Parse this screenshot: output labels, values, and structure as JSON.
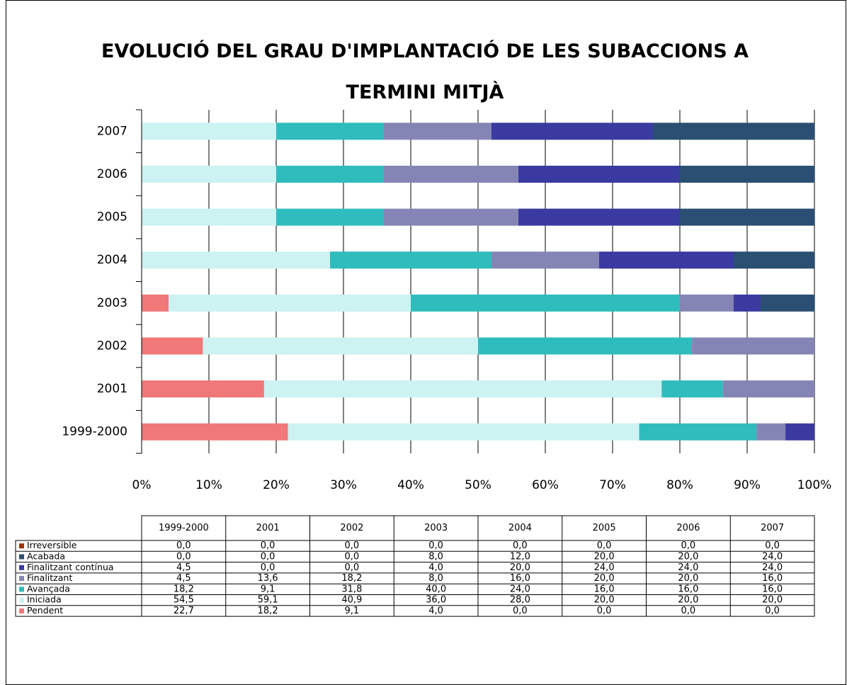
{
  "chart_data": {
    "type": "percent_stacked_barh",
    "title": "EVOLUCIÓ DEL GRAU D'IMPLANTACIÓ DE LES SUBACCIONS A TERMINI MITJÀ",
    "categories": [
      "1999-2000",
      "2001",
      "2002",
      "2003",
      "2004",
      "2005",
      "2006",
      "2007"
    ],
    "series": [
      {
        "name": "Pendent",
        "color": "#f07878",
        "values": [
          22.7,
          18.2,
          9.1,
          4.0,
          0.0,
          0.0,
          0.0,
          0.0
        ],
        "value_labels": [
          "22,7",
          "18,2",
          "9,1",
          "4,0",
          "0,0",
          "0,0",
          "0,0",
          "0,0"
        ]
      },
      {
        "name": "Iniciada",
        "color": "#ccf2f2",
        "values": [
          54.5,
          59.1,
          40.9,
          36.0,
          28.0,
          20.0,
          20.0,
          20.0
        ],
        "value_labels": [
          "54,5",
          "59,1",
          "40,9",
          "36,0",
          "28,0",
          "20,0",
          "20,0",
          "20,0"
        ]
      },
      {
        "name": "Avançada",
        "color": "#2fbcbc",
        "values": [
          18.2,
          9.1,
          31.8,
          40.0,
          24.0,
          16.0,
          16.0,
          16.0
        ],
        "value_labels": [
          "18,2",
          "9,1",
          "31,8",
          "40,0",
          "24,0",
          "16,0",
          "16,0",
          "16,0"
        ]
      },
      {
        "name": "Finalitzant",
        "color": "#8585b5",
        "values": [
          4.5,
          13.6,
          18.2,
          8.0,
          16.0,
          20.0,
          20.0,
          16.0
        ],
        "value_labels": [
          "4,5",
          "13,6",
          "18,2",
          "8,0",
          "16,0",
          "20,0",
          "20,0",
          "16,0"
        ]
      },
      {
        "name": "Finalitzant contínua",
        "color": "#3a3aa0",
        "values": [
          4.5,
          0.0,
          0.0,
          4.0,
          20.0,
          24.0,
          24.0,
          24.0
        ],
        "value_labels": [
          "4,5",
          "0,0",
          "0,0",
          "4,0",
          "20,0",
          "24,0",
          "24,0",
          "24,0"
        ]
      },
      {
        "name": "Acabada",
        "color": "#2b4f72",
        "values": [
          0.0,
          0.0,
          0.0,
          8.0,
          12.0,
          20.0,
          20.0,
          24.0
        ],
        "value_labels": [
          "0,0",
          "0,0",
          "0,0",
          "8,0",
          "12,0",
          "20,0",
          "20,0",
          "24,0"
        ]
      },
      {
        "name": "Irreversible",
        "color": "#993300",
        "values": [
          0.0,
          0.0,
          0.0,
          0.0,
          0.0,
          0.0,
          0.0,
          0.0
        ],
        "value_labels": [
          "0,0",
          "0,0",
          "0,0",
          "0,0",
          "0,0",
          "0,0",
          "0,0",
          "0,0"
        ]
      }
    ],
    "xlim": [
      0,
      100
    ],
    "xticks": [
      {
        "value": 0,
        "label": "0%"
      },
      {
        "value": 10,
        "label": "10%"
      },
      {
        "value": 20,
        "label": "20%"
      },
      {
        "value": 30,
        "label": "30%"
      },
      {
        "value": 40,
        "label": "40%"
      },
      {
        "value": 50,
        "label": "50%"
      },
      {
        "value": 60,
        "label": "60%"
      },
      {
        "value": 70,
        "label": "70%"
      },
      {
        "value": 80,
        "label": "80%"
      },
      {
        "value": 90,
        "label": "90%"
      },
      {
        "value": 100,
        "label": "100%"
      }
    ],
    "grid": true
  }
}
